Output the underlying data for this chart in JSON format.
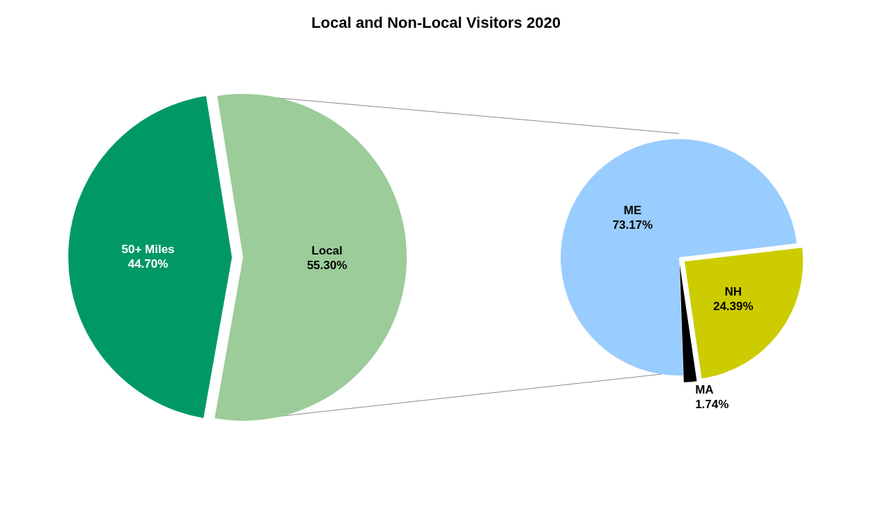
{
  "chart_data": [
    {
      "type": "pie",
      "title": "Local and Non-Local Visitors 2020",
      "categories": [
        "50+ Miles",
        "Local"
      ],
      "values": [
        44.7,
        55.3
      ],
      "colors": [
        "#009966",
        "#9ccc99"
      ],
      "value_labels": [
        "44.70%",
        "55.30%"
      ],
      "legend": false
    },
    {
      "type": "pie",
      "categories": [
        "ME",
        "NH",
        "MA"
      ],
      "values": [
        73.17,
        24.39,
        1.74
      ],
      "colors": [
        "#99ccff",
        "#cccc00",
        "#000000"
      ],
      "value_labels": [
        "73.17%",
        "24.39%",
        "1.74%"
      ],
      "legend": false
    }
  ]
}
